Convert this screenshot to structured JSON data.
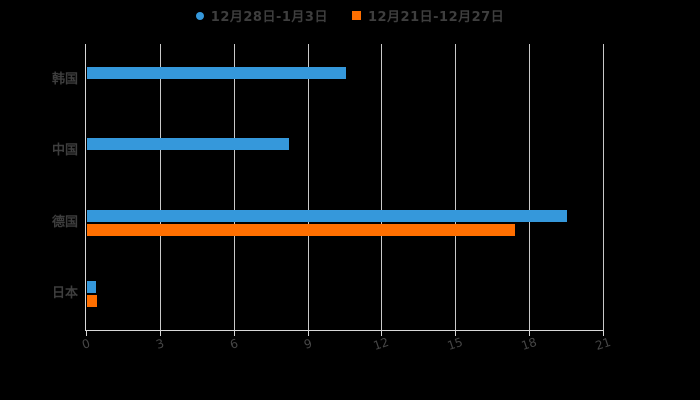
{
  "page": {
    "background": "#000000"
  },
  "legend": {
    "items": [
      {
        "label": "12月28日-1月3日",
        "marker": "circle",
        "color": "#3598db"
      },
      {
        "label": "12月21日-12月27日",
        "marker": "square",
        "color": "#ff6f00"
      }
    ]
  },
  "chart_data": {
    "type": "bar",
    "orientation": "horizontal",
    "title": "",
    "xlabel": "",
    "ylabel": "",
    "categories": [
      "韩国",
      "中国",
      "德国",
      "日本"
    ],
    "series": [
      {
        "name": "12月28日-1月3日",
        "color": "#3598db",
        "values": [
          10.5,
          8.2,
          19.5,
          0.35
        ]
      },
      {
        "name": "12月21日-12月27日",
        "color": "#ff6f00",
        "values": [
          null,
          null,
          17.4,
          0.4
        ]
      }
    ],
    "xlim": [
      0,
      21
    ],
    "xticks": [
      0,
      3,
      6,
      9,
      12,
      15,
      18,
      21
    ],
    "grid": true,
    "legend_position": "top",
    "colors": {
      "grid": "#c9c9c9",
      "axis": "#d8d8d8",
      "tick_text": "#464646",
      "label_text": "#3e3e3e",
      "background": "#000000"
    }
  }
}
